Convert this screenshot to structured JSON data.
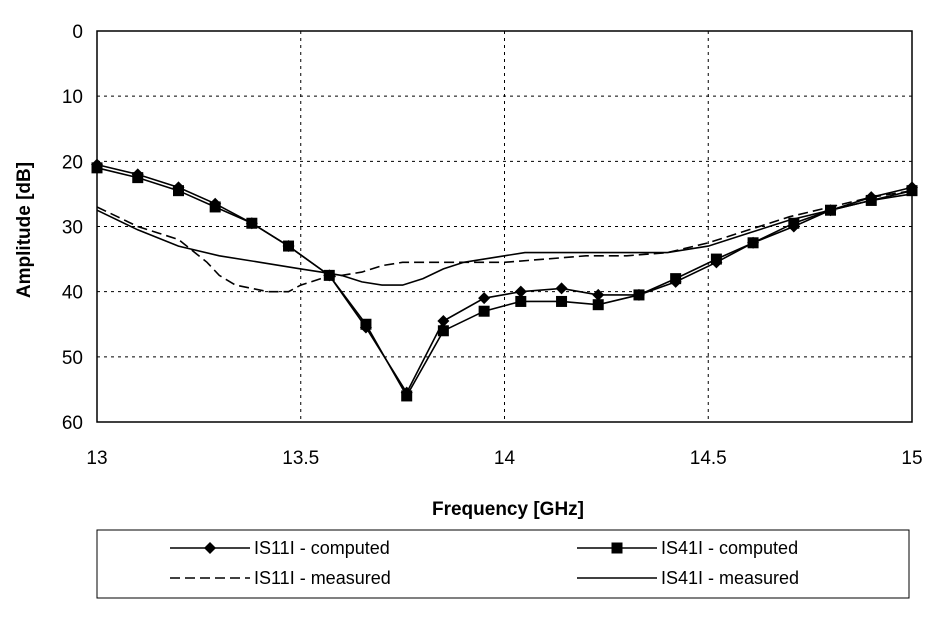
{
  "chart_data": {
    "type": "line",
    "title": "",
    "xlabel": "Frequency [GHz]",
    "ylabel": "Amplitude [dB]",
    "xlim": [
      13,
      15
    ],
    "ylim": [
      0,
      60
    ],
    "y_inverted": true,
    "x_ticks": [
      "13",
      "13.5",
      "14",
      "14.5",
      "15"
    ],
    "y_ticks": [
      "0",
      "10",
      "20",
      "30",
      "40",
      "50",
      "60"
    ],
    "grid": "dashed",
    "legend_position": "bottom",
    "series": [
      {
        "name": "IS11I - computed",
        "style": "solid-diamond",
        "x": [
          13.0,
          13.1,
          13.2,
          13.29,
          13.38,
          13.47,
          13.57,
          13.66,
          13.76,
          13.85,
          13.95,
          14.04,
          14.14,
          14.23,
          14.33,
          14.42,
          14.52,
          14.61,
          14.71,
          14.8,
          14.9,
          15.0
        ],
        "y": [
          20.5,
          22.0,
          24.0,
          26.5,
          29.5,
          33.0,
          37.5,
          45.5,
          55.5,
          44.5,
          41.0,
          40.0,
          39.5,
          40.5,
          40.5,
          38.5,
          35.5,
          32.5,
          30.0,
          27.5,
          25.5,
          24.0
        ]
      },
      {
        "name": "IS41I - computed",
        "style": "solid-square",
        "x": [
          13.0,
          13.1,
          13.2,
          13.29,
          13.38,
          13.47,
          13.57,
          13.66,
          13.76,
          13.85,
          13.95,
          14.04,
          14.14,
          14.23,
          14.33,
          14.42,
          14.52,
          14.61,
          14.71,
          14.8,
          14.9,
          15.0
        ],
        "y": [
          21.0,
          22.5,
          24.5,
          27.0,
          29.5,
          33.0,
          37.5,
          45.0,
          56.0,
          46.0,
          43.0,
          41.5,
          41.5,
          42.0,
          40.5,
          38.0,
          35.0,
          32.5,
          29.5,
          27.5,
          26.0,
          24.5
        ]
      },
      {
        "name": "IS11I - measured",
        "style": "dashed",
        "x": [
          13.0,
          13.05,
          13.1,
          13.15,
          13.2,
          13.23,
          13.27,
          13.3,
          13.34,
          13.38,
          13.42,
          13.47,
          13.5,
          13.55,
          13.6,
          13.65,
          13.7,
          13.75,
          13.8,
          13.85,
          13.9,
          13.95,
          14.0,
          14.1,
          14.2,
          14.3,
          14.4,
          14.5,
          14.6,
          14.7,
          14.8,
          14.9,
          15.0
        ],
        "y": [
          27.0,
          28.5,
          30.0,
          31.0,
          32.0,
          33.5,
          35.5,
          37.5,
          39.0,
          39.5,
          40.0,
          40.0,
          39.0,
          38.0,
          37.5,
          37.0,
          36.0,
          35.5,
          35.5,
          35.5,
          35.5,
          35.5,
          35.5,
          35.0,
          34.5,
          34.5,
          34.0,
          32.5,
          30.5,
          28.5,
          27.0,
          25.5,
          24.5
        ]
      },
      {
        "name": "IS41I - measured",
        "style": "solid",
        "x": [
          13.0,
          13.1,
          13.2,
          13.3,
          13.4,
          13.5,
          13.55,
          13.6,
          13.65,
          13.7,
          13.75,
          13.8,
          13.85,
          13.9,
          13.95,
          14.0,
          14.05,
          14.1,
          14.2,
          14.3,
          14.4,
          14.5,
          14.6,
          14.7,
          14.8,
          14.9,
          15.0
        ],
        "y": [
          27.5,
          30.5,
          33.0,
          34.5,
          35.5,
          36.5,
          37.0,
          37.5,
          38.5,
          39.0,
          39.0,
          38.0,
          36.5,
          35.5,
          35.0,
          34.5,
          34.0,
          34.0,
          34.0,
          34.0,
          34.0,
          33.0,
          31.0,
          29.0,
          27.5,
          26.0,
          25.0
        ]
      }
    ]
  }
}
